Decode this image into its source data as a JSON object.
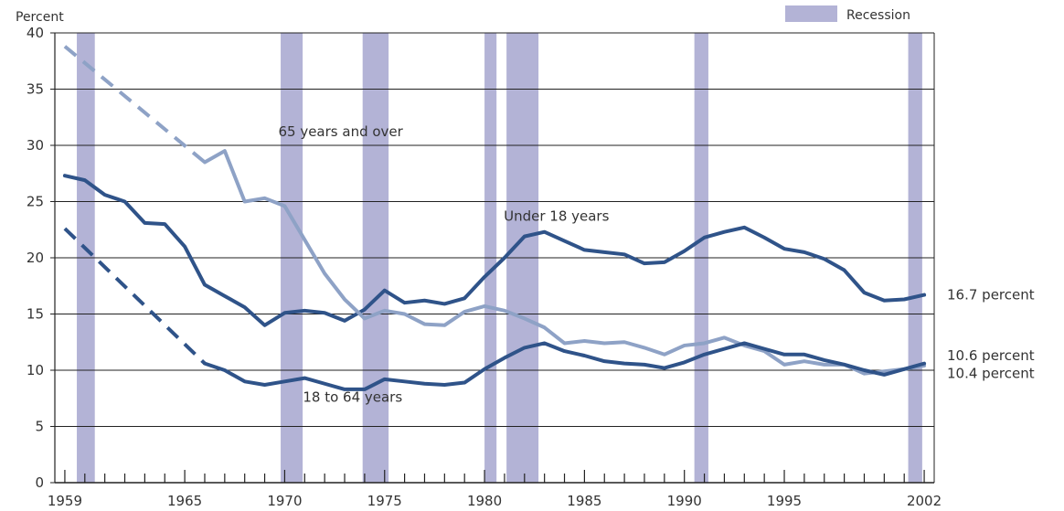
{
  "chart_data": {
    "type": "line",
    "ylabel": "Percent",
    "ylim": [
      0,
      40
    ],
    "xlim": [
      1959,
      2002
    ],
    "x_tick_labels": [
      "1959",
      "1965",
      "1970",
      "1975",
      "1980",
      "1985",
      "1990",
      "1995",
      "2002"
    ],
    "x_tick_values": [
      1959,
      1965,
      1970,
      1975,
      1980,
      1985,
      1990,
      1995,
      2002
    ],
    "y_ticks": [
      "0",
      "5",
      "10",
      "15",
      "20",
      "25",
      "30",
      "35",
      "40"
    ],
    "y_tick_values": [
      0,
      5,
      10,
      15,
      20,
      25,
      30,
      35,
      40
    ],
    "legend": {
      "label": "Recession",
      "color": "#b3b3d6",
      "position": "top-right"
    },
    "recessions": [
      [
        1959.6,
        1960.5
      ],
      [
        1969.8,
        1970.9
      ],
      [
        1973.9,
        1975.2
      ],
      [
        1980.0,
        1980.6
      ],
      [
        1981.1,
        1982.7
      ],
      [
        1990.5,
        1991.2
      ],
      [
        2001.2,
        2001.9
      ]
    ],
    "series": [
      {
        "name": "Under 18 years",
        "color": "#2f5389",
        "dashed_x": [],
        "dashed_y": [],
        "x": [
          1959,
          1960,
          1961,
          1962,
          1963,
          1964,
          1965,
          1966,
          1967,
          1968,
          1969,
          1970,
          1971,
          1972,
          1973,
          1974,
          1975,
          1976,
          1977,
          1978,
          1979,
          1980,
          1981,
          1982,
          1983,
          1984,
          1985,
          1986,
          1987,
          1988,
          1989,
          1990,
          1991,
          1992,
          1993,
          1994,
          1995,
          1996,
          1997,
          1998,
          1999,
          2000,
          2001,
          2002
        ],
        "y": [
          27.3,
          26.9,
          25.6,
          25.0,
          23.1,
          23.0,
          21.0,
          17.6,
          16.6,
          15.6,
          14.0,
          15.1,
          15.3,
          15.1,
          14.4,
          15.4,
          17.1,
          16.0,
          16.2,
          15.9,
          16.4,
          18.3,
          20.0,
          21.9,
          22.3,
          21.5,
          20.7,
          20.5,
          20.3,
          19.5,
          19.6,
          20.6,
          21.8,
          22.3,
          22.7,
          21.8,
          20.8,
          20.5,
          19.9,
          18.9,
          16.9,
          16.2,
          16.3,
          16.7
        ],
        "end_label": "16.7 percent",
        "label_x": 1983.6,
        "label_y": 23.3
      },
      {
        "name": "65 years and over",
        "color": "#8ea2c6",
        "dashed_x": [
          1959,
          1966
        ],
        "dashed_y": [
          38.8,
          28.5
        ],
        "x": [
          1966,
          1967,
          1968,
          1969,
          1970,
          1971,
          1972,
          1973,
          1974,
          1975,
          1976,
          1977,
          1978,
          1979,
          1980,
          1981,
          1982,
          1983,
          1984,
          1985,
          1986,
          1987,
          1988,
          1989,
          1990,
          1991,
          1992,
          1993,
          1994,
          1995,
          1996,
          1997,
          1998,
          1999,
          2000,
          2001,
          2002
        ],
        "y": [
          28.5,
          29.5,
          25.0,
          25.3,
          24.6,
          21.6,
          18.6,
          16.3,
          14.6,
          15.3,
          15.0,
          14.1,
          14.0,
          15.2,
          15.7,
          15.3,
          14.6,
          13.8,
          12.4,
          12.6,
          12.4,
          12.5,
          12.0,
          11.4,
          12.2,
          12.4,
          12.9,
          12.2,
          11.7,
          10.5,
          10.8,
          10.5,
          10.5,
          9.7,
          9.9,
          10.1,
          10.4
        ],
        "end_label": "10.4 percent",
        "label_x": 1972.8,
        "label_y": 30.8
      },
      {
        "name": "18 to 64 years",
        "color": "#2f5389",
        "dashed_x": [
          1959,
          1966
        ],
        "dashed_y": [
          22.6,
          10.6
        ],
        "x": [
          1966,
          1967,
          1968,
          1969,
          1970,
          1971,
          1972,
          1973,
          1974,
          1975,
          1976,
          1977,
          1978,
          1979,
          1980,
          1981,
          1982,
          1983,
          1984,
          1985,
          1986,
          1987,
          1988,
          1989,
          1990,
          1991,
          1992,
          1993,
          1994,
          1995,
          1996,
          1997,
          1998,
          1999,
          2000,
          2001,
          2002
        ],
        "y": [
          10.6,
          10.0,
          9.0,
          8.7,
          9.0,
          9.3,
          8.8,
          8.3,
          8.3,
          9.2,
          9.0,
          8.8,
          8.7,
          8.9,
          10.1,
          11.1,
          12.0,
          12.4,
          11.7,
          11.3,
          10.8,
          10.6,
          10.5,
          10.2,
          10.7,
          11.4,
          11.9,
          12.4,
          11.9,
          11.4,
          11.4,
          10.9,
          10.5,
          10.0,
          9.6,
          10.1,
          10.6
        ],
        "end_label": "10.6 percent",
        "label_x": 1973.4,
        "label_y": 7.2
      }
    ]
  }
}
